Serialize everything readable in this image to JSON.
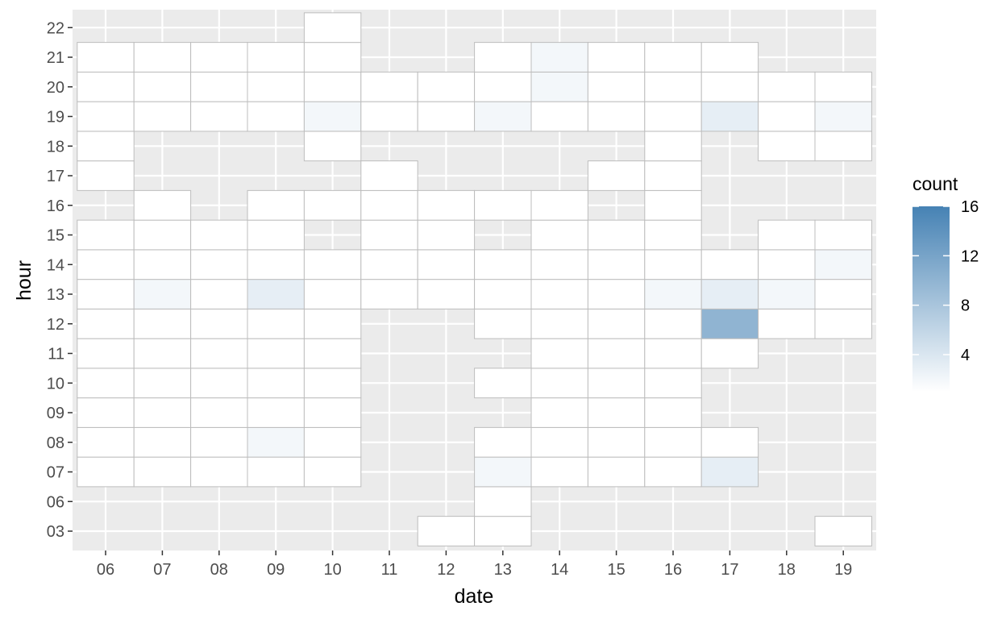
{
  "chart_data": {
    "type": "heatmap",
    "title": "",
    "xlabel": "date",
    "ylabel": "hour",
    "x_categories": [
      "06",
      "07",
      "08",
      "09",
      "10",
      "11",
      "12",
      "13",
      "14",
      "15",
      "16",
      "17",
      "18",
      "19"
    ],
    "y_categories": [
      "03",
      "06",
      "07",
      "08",
      "09",
      "10",
      "11",
      "12",
      "13",
      "14",
      "15",
      "16",
      "17",
      "18",
      "19",
      "20",
      "21",
      "22"
    ],
    "grid": true,
    "legend": {
      "title": "count",
      "position": "right",
      "ticks": [
        4,
        8,
        12,
        16
      ],
      "range": [
        1,
        16
      ],
      "low_color": "#ffffff",
      "high_color": "#4682b4"
    },
    "cells": [
      {
        "x": "06",
        "y": "07",
        "value": 1
      },
      {
        "x": "06",
        "y": "08",
        "value": 1
      },
      {
        "x": "06",
        "y": "09",
        "value": 1
      },
      {
        "x": "06",
        "y": "10",
        "value": 1
      },
      {
        "x": "06",
        "y": "11",
        "value": 1
      },
      {
        "x": "06",
        "y": "12",
        "value": 1
      },
      {
        "x": "06",
        "y": "13",
        "value": 1
      },
      {
        "x": "06",
        "y": "14",
        "value": 1
      },
      {
        "x": "06",
        "y": "15",
        "value": 1
      },
      {
        "x": "06",
        "y": "17",
        "value": 1
      },
      {
        "x": "06",
        "y": "18",
        "value": 1
      },
      {
        "x": "06",
        "y": "19",
        "value": 1
      },
      {
        "x": "06",
        "y": "20",
        "value": 1
      },
      {
        "x": "06",
        "y": "21",
        "value": 1
      },
      {
        "x": "07",
        "y": "07",
        "value": 1
      },
      {
        "x": "07",
        "y": "08",
        "value": 1
      },
      {
        "x": "07",
        "y": "09",
        "value": 1
      },
      {
        "x": "07",
        "y": "10",
        "value": 1
      },
      {
        "x": "07",
        "y": "11",
        "value": 1
      },
      {
        "x": "07",
        "y": "12",
        "value": 1
      },
      {
        "x": "07",
        "y": "13",
        "value": 2
      },
      {
        "x": "07",
        "y": "14",
        "value": 1
      },
      {
        "x": "07",
        "y": "15",
        "value": 1
      },
      {
        "x": "07",
        "y": "16",
        "value": 1
      },
      {
        "x": "07",
        "y": "19",
        "value": 1
      },
      {
        "x": "07",
        "y": "20",
        "value": 1
      },
      {
        "x": "07",
        "y": "21",
        "value": 1
      },
      {
        "x": "08",
        "y": "07",
        "value": 1
      },
      {
        "x": "08",
        "y": "08",
        "value": 1
      },
      {
        "x": "08",
        "y": "09",
        "value": 1
      },
      {
        "x": "08",
        "y": "10",
        "value": 1
      },
      {
        "x": "08",
        "y": "11",
        "value": 1
      },
      {
        "x": "08",
        "y": "12",
        "value": 1
      },
      {
        "x": "08",
        "y": "13",
        "value": 1
      },
      {
        "x": "08",
        "y": "14",
        "value": 1
      },
      {
        "x": "08",
        "y": "15",
        "value": 1
      },
      {
        "x": "08",
        "y": "19",
        "value": 1
      },
      {
        "x": "08",
        "y": "20",
        "value": 1
      },
      {
        "x": "08",
        "y": "21",
        "value": 1
      },
      {
        "x": "09",
        "y": "07",
        "value": 1
      },
      {
        "x": "09",
        "y": "08",
        "value": 2
      },
      {
        "x": "09",
        "y": "09",
        "value": 1
      },
      {
        "x": "09",
        "y": "10",
        "value": 1
      },
      {
        "x": "09",
        "y": "11",
        "value": 1
      },
      {
        "x": "09",
        "y": "12",
        "value": 1
      },
      {
        "x": "09",
        "y": "13",
        "value": 3
      },
      {
        "x": "09",
        "y": "14",
        "value": 1
      },
      {
        "x": "09",
        "y": "15",
        "value": 1
      },
      {
        "x": "09",
        "y": "16",
        "value": 1
      },
      {
        "x": "09",
        "y": "19",
        "value": 1
      },
      {
        "x": "09",
        "y": "20",
        "value": 1
      },
      {
        "x": "09",
        "y": "21",
        "value": 1
      },
      {
        "x": "10",
        "y": "07",
        "value": 1
      },
      {
        "x": "10",
        "y": "08",
        "value": 1
      },
      {
        "x": "10",
        "y": "09",
        "value": 1
      },
      {
        "x": "10",
        "y": "10",
        "value": 1
      },
      {
        "x": "10",
        "y": "11",
        "value": 1
      },
      {
        "x": "10",
        "y": "12",
        "value": 1
      },
      {
        "x": "10",
        "y": "13",
        "value": 1
      },
      {
        "x": "10",
        "y": "14",
        "value": 1
      },
      {
        "x": "10",
        "y": "16",
        "value": 1
      },
      {
        "x": "10",
        "y": "18",
        "value": 1
      },
      {
        "x": "10",
        "y": "19",
        "value": 2
      },
      {
        "x": "10",
        "y": "20",
        "value": 1
      },
      {
        "x": "10",
        "y": "21",
        "value": 1
      },
      {
        "x": "10",
        "y": "22",
        "value": 1
      },
      {
        "x": "11",
        "y": "13",
        "value": 1
      },
      {
        "x": "11",
        "y": "14",
        "value": 1
      },
      {
        "x": "11",
        "y": "15",
        "value": 1
      },
      {
        "x": "11",
        "y": "16",
        "value": 1
      },
      {
        "x": "11",
        "y": "17",
        "value": 1
      },
      {
        "x": "11",
        "y": "19",
        "value": 1
      },
      {
        "x": "11",
        "y": "20",
        "value": 1
      },
      {
        "x": "12",
        "y": "03",
        "value": 1
      },
      {
        "x": "12",
        "y": "13",
        "value": 1
      },
      {
        "x": "12",
        "y": "14",
        "value": 1
      },
      {
        "x": "12",
        "y": "15",
        "value": 1
      },
      {
        "x": "12",
        "y": "16",
        "value": 1
      },
      {
        "x": "12",
        "y": "19",
        "value": 1
      },
      {
        "x": "12",
        "y": "20",
        "value": 1
      },
      {
        "x": "13",
        "y": "03",
        "value": 1
      },
      {
        "x": "13",
        "y": "06",
        "value": 1
      },
      {
        "x": "13",
        "y": "07",
        "value": 2
      },
      {
        "x": "13",
        "y": "08",
        "value": 1
      },
      {
        "x": "13",
        "y": "10",
        "value": 1
      },
      {
        "x": "13",
        "y": "12",
        "value": 1
      },
      {
        "x": "13",
        "y": "13",
        "value": 1
      },
      {
        "x": "13",
        "y": "14",
        "value": 1
      },
      {
        "x": "13",
        "y": "16",
        "value": 1
      },
      {
        "x": "13",
        "y": "19",
        "value": 2
      },
      {
        "x": "13",
        "y": "20",
        "value": 1
      },
      {
        "x": "13",
        "y": "21",
        "value": 1
      },
      {
        "x": "14",
        "y": "07",
        "value": 1
      },
      {
        "x": "14",
        "y": "08",
        "value": 1
      },
      {
        "x": "14",
        "y": "09",
        "value": 1
      },
      {
        "x": "14",
        "y": "10",
        "value": 1
      },
      {
        "x": "14",
        "y": "11",
        "value": 1
      },
      {
        "x": "14",
        "y": "12",
        "value": 1
      },
      {
        "x": "14",
        "y": "13",
        "value": 1
      },
      {
        "x": "14",
        "y": "14",
        "value": 1
      },
      {
        "x": "14",
        "y": "15",
        "value": 1
      },
      {
        "x": "14",
        "y": "16",
        "value": 1
      },
      {
        "x": "14",
        "y": "19",
        "value": 1
      },
      {
        "x": "14",
        "y": "20",
        "value": 2
      },
      {
        "x": "14",
        "y": "21",
        "value": 2
      },
      {
        "x": "15",
        "y": "07",
        "value": 1
      },
      {
        "x": "15",
        "y": "08",
        "value": 1
      },
      {
        "x": "15",
        "y": "09",
        "value": 1
      },
      {
        "x": "15",
        "y": "10",
        "value": 1
      },
      {
        "x": "15",
        "y": "11",
        "value": 1
      },
      {
        "x": "15",
        "y": "12",
        "value": 1
      },
      {
        "x": "15",
        "y": "13",
        "value": 1
      },
      {
        "x": "15",
        "y": "14",
        "value": 1
      },
      {
        "x": "15",
        "y": "15",
        "value": 1
      },
      {
        "x": "15",
        "y": "17",
        "value": 1
      },
      {
        "x": "15",
        "y": "19",
        "value": 1
      },
      {
        "x": "15",
        "y": "20",
        "value": 1
      },
      {
        "x": "15",
        "y": "21",
        "value": 1
      },
      {
        "x": "16",
        "y": "07",
        "value": 1
      },
      {
        "x": "16",
        "y": "08",
        "value": 1
      },
      {
        "x": "16",
        "y": "09",
        "value": 1
      },
      {
        "x": "16",
        "y": "10",
        "value": 1
      },
      {
        "x": "16",
        "y": "11",
        "value": 1
      },
      {
        "x": "16",
        "y": "12",
        "value": 1
      },
      {
        "x": "16",
        "y": "13",
        "value": 2
      },
      {
        "x": "16",
        "y": "14",
        "value": 1
      },
      {
        "x": "16",
        "y": "15",
        "value": 1
      },
      {
        "x": "16",
        "y": "16",
        "value": 1
      },
      {
        "x": "16",
        "y": "17",
        "value": 1
      },
      {
        "x": "16",
        "y": "18",
        "value": 1
      },
      {
        "x": "16",
        "y": "19",
        "value": 1
      },
      {
        "x": "16",
        "y": "20",
        "value": 1
      },
      {
        "x": "16",
        "y": "21",
        "value": 1
      },
      {
        "x": "17",
        "y": "07",
        "value": 3
      },
      {
        "x": "17",
        "y": "08",
        "value": 1
      },
      {
        "x": "17",
        "y": "11",
        "value": 1
      },
      {
        "x": "17",
        "y": "12",
        "value": 10
      },
      {
        "x": "17",
        "y": "13",
        "value": 3
      },
      {
        "x": "17",
        "y": "14",
        "value": 1
      },
      {
        "x": "17",
        "y": "19",
        "value": 3
      },
      {
        "x": "17",
        "y": "20",
        "value": 1
      },
      {
        "x": "17",
        "y": "21",
        "value": 1
      },
      {
        "x": "18",
        "y": "12",
        "value": 1
      },
      {
        "x": "18",
        "y": "13",
        "value": 2
      },
      {
        "x": "18",
        "y": "14",
        "value": 1
      },
      {
        "x": "18",
        "y": "15",
        "value": 1
      },
      {
        "x": "18",
        "y": "18",
        "value": 1
      },
      {
        "x": "18",
        "y": "19",
        "value": 1
      },
      {
        "x": "18",
        "y": "20",
        "value": 1
      },
      {
        "x": "19",
        "y": "03",
        "value": 1
      },
      {
        "x": "19",
        "y": "12",
        "value": 1
      },
      {
        "x": "19",
        "y": "13",
        "value": 1
      },
      {
        "x": "19",
        "y": "14",
        "value": 2
      },
      {
        "x": "19",
        "y": "15",
        "value": 1
      },
      {
        "x": "19",
        "y": "18",
        "value": 1
      },
      {
        "x": "19",
        "y": "19",
        "value": 2
      },
      {
        "x": "19",
        "y": "20",
        "value": 1
      }
    ]
  }
}
